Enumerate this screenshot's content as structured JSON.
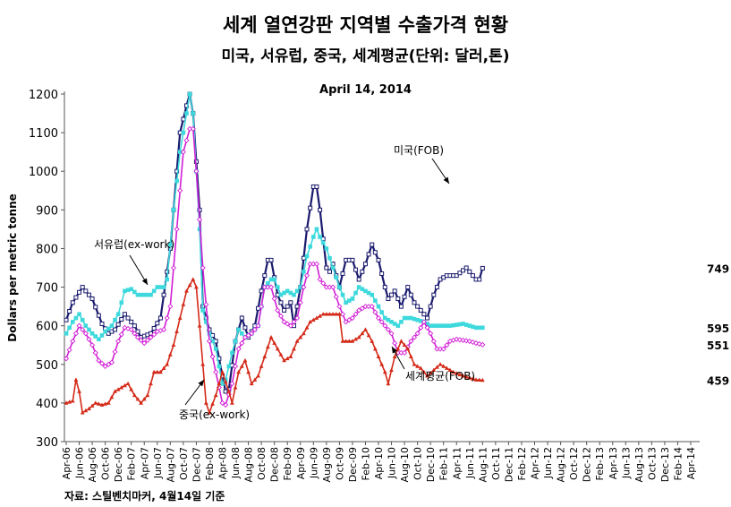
{
  "title": "세계 열연강판 지역별 수출가격 현황",
  "subtitle": "미국, 서유럽, 중국, 세계평균(단위: 달러,톤)",
  "date_label": "April 14, 2014",
  "source": "자료: 스틸벤치마커, 4월14일 기준",
  "chart_data": {
    "type": "line",
    "ylabel": "Dollars per metric tonne",
    "ylim": [
      300,
      1200
    ],
    "yticks": [
      300,
      400,
      500,
      600,
      700,
      800,
      900,
      1000,
      1100,
      1200
    ],
    "grid": false,
    "x_start": "2006-04",
    "months": 97,
    "xticks": [
      "Apr-06",
      "Jun-06",
      "Aug-06",
      "Oct-06",
      "Dec-06",
      "Feb-07",
      "Apr-07",
      "Jun-07",
      "Aug-07",
      "Oct-07",
      "Dec-07",
      "Feb-08",
      "Apr-08",
      "Jun-08",
      "Aug-08",
      "Oct-08",
      "Dec-08",
      "Feb-09",
      "Apr-09",
      "Jun-09",
      "Aug-09",
      "Oct-09",
      "Dec-09",
      "Feb-10",
      "Apr-10",
      "Jun-10",
      "Aug-10",
      "Oct-10",
      "Dec-10",
      "Feb-11",
      "Apr-11",
      "Jun-11",
      "Aug-11",
      "Oct-11",
      "Dec-11",
      "Feb-12",
      "Apr-12",
      "Jun-12",
      "Aug-12",
      "Oct-12",
      "Dec-12",
      "Feb-13",
      "Apr-13",
      "Jun-13",
      "Aug-13",
      "Oct-13",
      "Dec-13",
      "Feb-14",
      "Apr-14"
    ],
    "series": [
      {
        "name": "미국(FOB)",
        "color": "#1a1a6e",
        "marker": "square-open",
        "last": "749",
        "key": [
          [
            0,
            615
          ],
          [
            2,
            660
          ],
          [
            5,
            700
          ],
          [
            8,
            670
          ],
          [
            11,
            605
          ],
          [
            13,
            580
          ],
          [
            15,
            590
          ],
          [
            18,
            630
          ],
          [
            21,
            600
          ],
          [
            23,
            570
          ],
          [
            26,
            580
          ],
          [
            29,
            620
          ],
          [
            32,
            800
          ],
          [
            34,
            1000
          ],
          [
            35,
            1100
          ],
          [
            37,
            1170
          ],
          [
            38,
            1200
          ],
          [
            39,
            1150
          ],
          [
            41,
            900
          ],
          [
            42,
            650
          ],
          [
            44,
            590
          ],
          [
            46,
            560
          ],
          [
            48,
            470
          ],
          [
            49,
            430
          ],
          [
            50,
            435
          ],
          [
            52,
            560
          ],
          [
            54,
            620
          ],
          [
            56,
            570
          ],
          [
            58,
            600
          ],
          [
            60,
            690
          ],
          [
            62,
            770
          ],
          [
            63,
            770
          ],
          [
            65,
            680
          ],
          [
            67,
            640
          ],
          [
            69,
            660
          ],
          [
            70,
            600
          ],
          [
            72,
            700
          ],
          [
            74,
            850
          ],
          [
            76,
            960
          ],
          [
            77,
            960
          ],
          [
            78,
            900
          ],
          [
            80,
            750
          ],
          [
            81,
            740
          ],
          [
            82,
            760
          ],
          [
            84,
            700
          ],
          [
            86,
            770
          ],
          [
            88,
            770
          ],
          [
            90,
            720
          ],
          [
            92,
            760
          ],
          [
            94,
            810
          ],
          [
            96,
            770
          ],
          [
            98,
            700
          ],
          [
            99,
            670
          ],
          [
            101,
            690
          ],
          [
            103,
            650
          ],
          [
            105,
            700
          ],
          [
            107,
            660
          ],
          [
            109,
            640
          ],
          [
            111,
            620
          ],
          [
            113,
            680
          ],
          [
            115,
            720
          ],
          [
            117,
            730
          ],
          [
            120,
            730
          ],
          [
            123,
            750
          ],
          [
            126,
            720
          ],
          [
            127,
            720
          ],
          [
            128,
            749
          ]
        ]
      },
      {
        "name": "서유럽(ex-work)",
        "color": "#3dd9dc",
        "marker": "square-filled",
        "last": "595",
        "key": [
          [
            0,
            580
          ],
          [
            2,
            610
          ],
          [
            4,
            630
          ],
          [
            6,
            600
          ],
          [
            8,
            580
          ],
          [
            10,
            565
          ],
          [
            12,
            585
          ],
          [
            14,
            600
          ],
          [
            16,
            630
          ],
          [
            18,
            690
          ],
          [
            20,
            695
          ],
          [
            22,
            680
          ],
          [
            24,
            680
          ],
          [
            26,
            680
          ],
          [
            28,
            700
          ],
          [
            30,
            700
          ],
          [
            31,
            720
          ],
          [
            33,
            900
          ],
          [
            35,
            1050
          ],
          [
            37,
            1150
          ],
          [
            38,
            1200
          ],
          [
            39,
            1150
          ],
          [
            41,
            850
          ],
          [
            42,
            640
          ],
          [
            44,
            580
          ],
          [
            46,
            540
          ],
          [
            48,
            450
          ],
          [
            49,
            460
          ],
          [
            51,
            530
          ],
          [
            53,
            590
          ],
          [
            55,
            570
          ],
          [
            57,
            580
          ],
          [
            59,
            600
          ],
          [
            61,
            700
          ],
          [
            63,
            720
          ],
          [
            64,
            720
          ],
          [
            66,
            680
          ],
          [
            68,
            690
          ],
          [
            70,
            680
          ],
          [
            72,
            700
          ],
          [
            74,
            780
          ],
          [
            76,
            830
          ],
          [
            77,
            850
          ],
          [
            78,
            830
          ],
          [
            80,
            800
          ],
          [
            82,
            750
          ],
          [
            84,
            700
          ],
          [
            86,
            660
          ],
          [
            88,
            670
          ],
          [
            90,
            700
          ],
          [
            92,
            690
          ],
          [
            94,
            680
          ],
          [
            96,
            650
          ],
          [
            98,
            620
          ],
          [
            100,
            610
          ],
          [
            102,
            600
          ],
          [
            104,
            620
          ],
          [
            106,
            620
          ],
          [
            108,
            615
          ],
          [
            110,
            610
          ],
          [
            112,
            600
          ],
          [
            114,
            600
          ],
          [
            118,
            600
          ],
          [
            122,
            605
          ],
          [
            126,
            595
          ],
          [
            128,
            595
          ]
        ]
      },
      {
        "name": "세계평균(FOB)",
        "color": "#d11fd6",
        "marker": "diamond-open",
        "last": "551",
        "key": [
          [
            0,
            515
          ],
          [
            2,
            560
          ],
          [
            4,
            600
          ],
          [
            6,
            580
          ],
          [
            8,
            550
          ],
          [
            10,
            510
          ],
          [
            12,
            495
          ],
          [
            14,
            505
          ],
          [
            16,
            560
          ],
          [
            18,
            595
          ],
          [
            20,
            590
          ],
          [
            22,
            570
          ],
          [
            24,
            555
          ],
          [
            26,
            570
          ],
          [
            28,
            585
          ],
          [
            30,
            590
          ],
          [
            32,
            650
          ],
          [
            34,
            850
          ],
          [
            36,
            1050
          ],
          [
            38,
            1110
          ],
          [
            39,
            1110
          ],
          [
            40,
            1000
          ],
          [
            42,
            750
          ],
          [
            44,
            560
          ],
          [
            46,
            480
          ],
          [
            48,
            400
          ],
          [
            49,
            395
          ],
          [
            51,
            450
          ],
          [
            53,
            540
          ],
          [
            55,
            570
          ],
          [
            57,
            580
          ],
          [
            59,
            600
          ],
          [
            61,
            700
          ],
          [
            63,
            700
          ],
          [
            65,
            640
          ],
          [
            67,
            610
          ],
          [
            69,
            600
          ],
          [
            71,
            620
          ],
          [
            73,
            700
          ],
          [
            75,
            760
          ],
          [
            77,
            760
          ],
          [
            78,
            720
          ],
          [
            80,
            700
          ],
          [
            82,
            700
          ],
          [
            84,
            650
          ],
          [
            86,
            610
          ],
          [
            88,
            620
          ],
          [
            90,
            640
          ],
          [
            92,
            650
          ],
          [
            94,
            650
          ],
          [
            96,
            620
          ],
          [
            98,
            600
          ],
          [
            100,
            580
          ],
          [
            102,
            530
          ],
          [
            104,
            530
          ],
          [
            106,
            560
          ],
          [
            108,
            580
          ],
          [
            110,
            610
          ],
          [
            112,
            580
          ],
          [
            114,
            540
          ],
          [
            116,
            540
          ],
          [
            118,
            560
          ],
          [
            120,
            565
          ],
          [
            124,
            560
          ],
          [
            126,
            555
          ],
          [
            128,
            551
          ]
        ]
      },
      {
        "name": "중국(ex-work)",
        "color": "#d42a18",
        "marker": "triangle-filled",
        "last": "459",
        "key": [
          [
            0,
            400
          ],
          [
            2,
            405
          ],
          [
            3,
            460
          ],
          [
            4,
            430
          ],
          [
            5,
            375
          ],
          [
            7,
            385
          ],
          [
            9,
            400
          ],
          [
            11,
            395
          ],
          [
            13,
            400
          ],
          [
            15,
            430
          ],
          [
            17,
            440
          ],
          [
            19,
            450
          ],
          [
            21,
            420
          ],
          [
            23,
            400
          ],
          [
            25,
            420
          ],
          [
            27,
            480
          ],
          [
            29,
            480
          ],
          [
            31,
            500
          ],
          [
            33,
            550
          ],
          [
            35,
            620
          ],
          [
            37,
            690
          ],
          [
            39,
            720
          ],
          [
            40,
            700
          ],
          [
            41,
            600
          ],
          [
            42,
            500
          ],
          [
            43,
            400
          ],
          [
            44,
            375
          ],
          [
            46,
            420
          ],
          [
            48,
            480
          ],
          [
            50,
            430
          ],
          [
            51,
            400
          ],
          [
            53,
            480
          ],
          [
            55,
            510
          ],
          [
            57,
            450
          ],
          [
            59,
            470
          ],
          [
            61,
            520
          ],
          [
            63,
            570
          ],
          [
            65,
            540
          ],
          [
            67,
            510
          ],
          [
            69,
            520
          ],
          [
            71,
            560
          ],
          [
            73,
            580
          ],
          [
            75,
            610
          ],
          [
            77,
            620
          ],
          [
            79,
            630
          ],
          [
            82,
            630
          ],
          [
            84,
            630
          ],
          [
            85,
            560
          ],
          [
            88,
            560
          ],
          [
            90,
            570
          ],
          [
            92,
            590
          ],
          [
            94,
            560
          ],
          [
            96,
            520
          ],
          [
            98,
            480
          ],
          [
            99,
            450
          ],
          [
            101,
            520
          ],
          [
            103,
            560
          ],
          [
            105,
            540
          ],
          [
            107,
            500
          ],
          [
            109,
            490
          ],
          [
            111,
            470
          ],
          [
            113,
            485
          ],
          [
            115,
            500
          ],
          [
            117,
            490
          ],
          [
            119,
            480
          ],
          [
            122,
            470
          ],
          [
            126,
            460
          ],
          [
            128,
            459
          ]
        ]
      }
    ],
    "annotations": [
      {
        "text": "미국(FOB)",
        "series": "미국(FOB)"
      },
      {
        "text": "서유럽(ex-work)",
        "series": "서유럽(ex-work)"
      },
      {
        "text": "세계평균(FOB)",
        "series": "세계평균(FOB)"
      },
      {
        "text": "중국(ex-work)",
        "series": "중국(ex-work)"
      }
    ]
  }
}
